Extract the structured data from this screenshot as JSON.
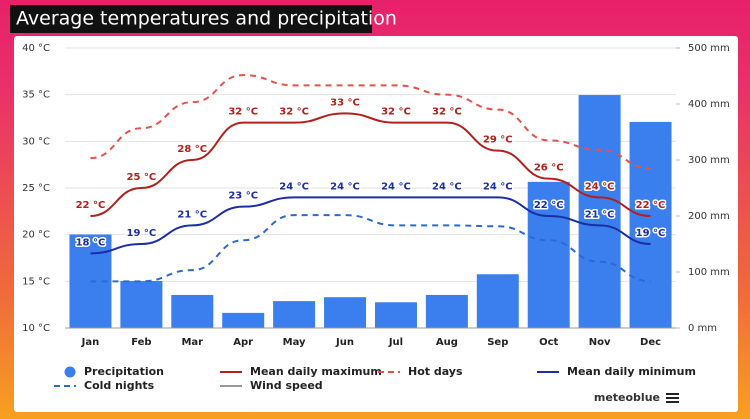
{
  "chart_data": {
    "type": "combo",
    "title": "Average temperatures and precipitation",
    "brand": "meteoblue",
    "categories": [
      "Jan",
      "Feb",
      "Mar",
      "Apr",
      "May",
      "Jun",
      "Jul",
      "Aug",
      "Sep",
      "Oct",
      "Nov",
      "Dec"
    ],
    "ylim": [
      10,
      40
    ],
    "yticks": [
      {
        "value": 40,
        "label": "40 °C"
      },
      {
        "value": 35,
        "label": "35 °C"
      },
      {
        "value": 30,
        "label": "30 °C"
      },
      {
        "value": 25,
        "label": "25 °C"
      },
      {
        "value": 20,
        "label": "20 °C"
      },
      {
        "value": 15,
        "label": "15 °C"
      },
      {
        "value": 10,
        "label": "10 °C"
      }
    ],
    "y2lim": [
      0,
      500
    ],
    "y2ticks": [
      {
        "value": 500,
        "label": "500 mm"
      },
      {
        "value": 400,
        "label": "400 mm"
      },
      {
        "value": 300,
        "label": "300 mm"
      },
      {
        "value": 200,
        "label": "200 mm"
      },
      {
        "value": 100,
        "label": "100 mm"
      },
      {
        "value": 0,
        "label": "0 mm"
      }
    ],
    "grid": true,
    "series": [
      {
        "name": "Precipitation",
        "kind": "bar",
        "axis": "y2",
        "color": "#3b7fee",
        "values": [
          167,
          84,
          59,
          27,
          48,
          55,
          46,
          59,
          96,
          261,
          416,
          368
        ]
      },
      {
        "name": "Mean daily maximum",
        "kind": "line",
        "dashed": false,
        "color": "#b3201b",
        "values": [
          22,
          25,
          28,
          32,
          32,
          33,
          32,
          32,
          29,
          26,
          24,
          22
        ],
        "value_labels": [
          "22 °C",
          "25 °C",
          "28 °C",
          "32 °C",
          "32 °C",
          "33 °C",
          "32 °C",
          "32 °C",
          "29 °C",
          "26 °C",
          "24 °C",
          "22 °C"
        ]
      },
      {
        "name": "Hot days",
        "kind": "line",
        "dashed": true,
        "color": "#e5524a",
        "values": [
          28.2,
          31.4,
          34.2,
          37.1,
          36,
          36,
          36,
          35,
          33.4,
          30.1,
          29.1,
          27.1
        ]
      },
      {
        "name": "Mean daily minimum",
        "kind": "line",
        "dashed": false,
        "color": "#1b2ea6",
        "values": [
          18,
          19,
          21,
          23,
          24,
          24,
          24,
          24,
          24,
          22,
          21,
          19
        ],
        "value_labels": [
          "18 °C",
          "19 °C",
          "21 °C",
          "23 °C",
          "24 °C",
          "24 °C",
          "24 °C",
          "24 °C",
          "24 °C",
          "22 °C",
          "21 °C",
          "19 °C"
        ]
      },
      {
        "name": "Cold nights",
        "kind": "line",
        "dashed": true,
        "color": "#2a6ad6",
        "values": [
          15,
          15,
          16.2,
          19.4,
          22.1,
          22.1,
          21,
          21,
          20.9,
          19.4,
          17.1,
          15
        ]
      }
    ],
    "extra_legend": [
      {
        "name": "Wind speed",
        "color": "#999999"
      }
    ]
  }
}
